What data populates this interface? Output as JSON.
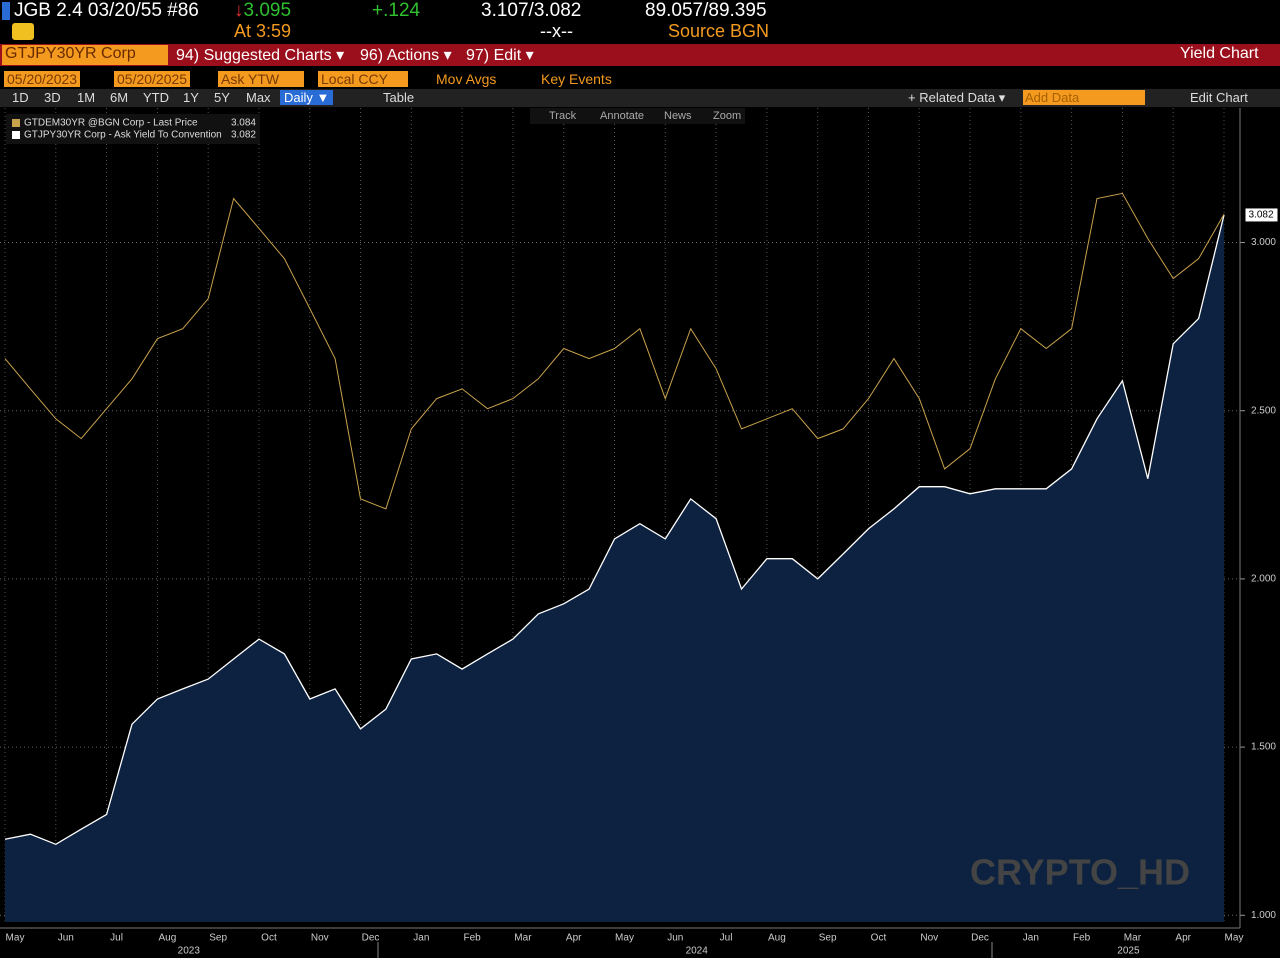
{
  "header": {
    "security": "JGB 2.4 03/20/55 #86",
    "last_price": "3.095",
    "change": "+.124",
    "bid_ask_yield": "3.107/3.082",
    "bid_ask_price": "89.057/89.395",
    "time": "At 3:59",
    "spread": "--x--",
    "source": "Source BGN"
  },
  "toolbar": {
    "ticker": "GTJPY30YR Corp",
    "menus": [
      "94) Suggested Charts ▾",
      "96) Actions ▾",
      "97) Edit ▾"
    ],
    "view": "Yield Chart",
    "start_date": "05/20/2023",
    "end_date": "05/20/2025",
    "field": "Ask YTW",
    "currency": "Local CCY",
    "mov_avgs": "Mov Avgs",
    "key_events": "Key Events",
    "ranges": [
      "1D",
      "3D",
      "1M",
      "6M",
      "YTD",
      "1Y",
      "5Y",
      "Max"
    ],
    "frequency": "Daily ▼",
    "table": "Table",
    "related_data": "+ Related Data ▾",
    "add_data": "Add Data",
    "edit_chart": "Edit Chart"
  },
  "chart_tools": [
    "Track",
    "Annotate",
    "News",
    "Zoom"
  ],
  "watermark": "CRYPTO_HD",
  "chart_data": {
    "type": "line",
    "categories": [
      "May",
      null,
      "Jun",
      null,
      "Jul",
      null,
      "Aug",
      null,
      "Sep",
      null,
      "Oct",
      null,
      "Nov",
      null,
      "Dec",
      null,
      "Jan",
      null,
      "Feb",
      null,
      "Mar",
      null,
      "Apr",
      null,
      "May",
      null,
      "Jun",
      null,
      "Jul",
      null,
      "Aug",
      null,
      "Sep",
      null,
      "Oct",
      null,
      "Nov",
      null,
      "Dec",
      null,
      "Jan",
      null,
      "Feb",
      null,
      "Mar",
      null,
      "Apr",
      null,
      "May"
    ],
    "category_years": [
      null,
      null,
      null,
      null,
      null,
      null,
      null,
      "2023",
      null,
      null,
      null,
      null,
      null,
      null,
      null,
      null,
      null,
      null,
      null,
      null,
      null,
      null,
      null,
      null,
      null,
      null,
      null,
      "2024",
      null,
      null,
      null,
      null,
      null,
      null,
      null,
      null,
      null,
      null,
      null,
      null,
      null,
      null,
      null,
      null,
      "2025",
      null,
      null,
      null,
      null
    ],
    "series": [
      {
        "name": "GTDEM30YR @BGN Corp - Last Price",
        "color": "#c9a24c",
        "legend_value": 3.084,
        "values": [
          2.655,
          2.565,
          2.476,
          2.417,
          2.506,
          2.595,
          2.714,
          2.744,
          2.833,
          3.131,
          3.042,
          2.952,
          2.804,
          2.655,
          2.238,
          2.208,
          2.446,
          2.536,
          2.565,
          2.506,
          2.536,
          2.595,
          2.685,
          2.655,
          2.685,
          2.744,
          2.536,
          2.744,
          2.625,
          2.446,
          2.476,
          2.506,
          2.417,
          2.446,
          2.536,
          2.655,
          2.536,
          2.327,
          2.387,
          2.595,
          2.744,
          2.685,
          2.744,
          3.131,
          3.146,
          3.012,
          2.893,
          2.952,
          3.084
        ]
      },
      {
        "name": "GTJPY30YR Corp - Ask Yield To Convention",
        "color": "#ffffff",
        "fill": "#0c2240",
        "legend_value": 3.082,
        "values": [
          1.226,
          1.241,
          1.211,
          1.256,
          1.3,
          1.568,
          1.643,
          1.673,
          1.702,
          1.762,
          1.821,
          1.777,
          1.643,
          1.673,
          1.554,
          1.613,
          1.762,
          1.777,
          1.732,
          1.777,
          1.821,
          1.896,
          1.926,
          1.97,
          2.119,
          2.164,
          2.119,
          2.238,
          2.179,
          1.97,
          2.06,
          2.06,
          2.0,
          2.074,
          2.149,
          2.208,
          2.274,
          2.274,
          2.253,
          2.268,
          2.268,
          2.268,
          2.327,
          2.476,
          2.589,
          2.298,
          2.699,
          2.774,
          3.082
        ]
      }
    ],
    "ylim": [
      0.98,
      3.4
    ],
    "yticks": [
      {
        "value": 1,
        "label": "1.000"
      },
      {
        "value": 1.5,
        "label": "1.500"
      },
      {
        "value": 2,
        "label": "2.000"
      },
      {
        "value": 2.5,
        "label": "2.500"
      },
      {
        "value": 3,
        "label": "3.000"
      }
    ],
    "grid": true
  }
}
